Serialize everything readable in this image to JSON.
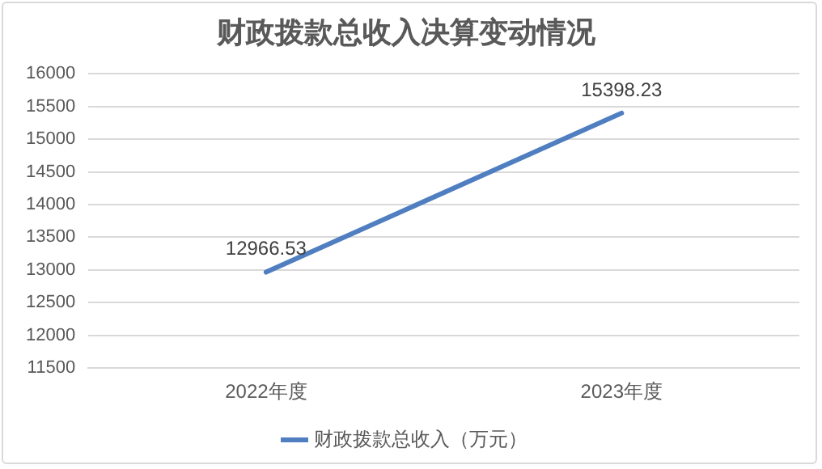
{
  "chart_data": {
    "type": "line",
    "title": "财政拨款总收入决算变动情况",
    "categories": [
      "2022年度",
      "2023年度"
    ],
    "series": [
      {
        "name": "财政拨款总收入（万元）",
        "color": "#4f7fc0",
        "values": [
          12966.53,
          15398.23
        ]
      }
    ],
    "ylim": [
      11500,
      16000
    ],
    "yticks": [
      11500,
      12000,
      12500,
      13000,
      13500,
      14000,
      14500,
      15000,
      15500,
      16000
    ],
    "grid": "y",
    "legend": "bottom",
    "marker": "none",
    "line_style": "solid",
    "data_labels": true
  }
}
